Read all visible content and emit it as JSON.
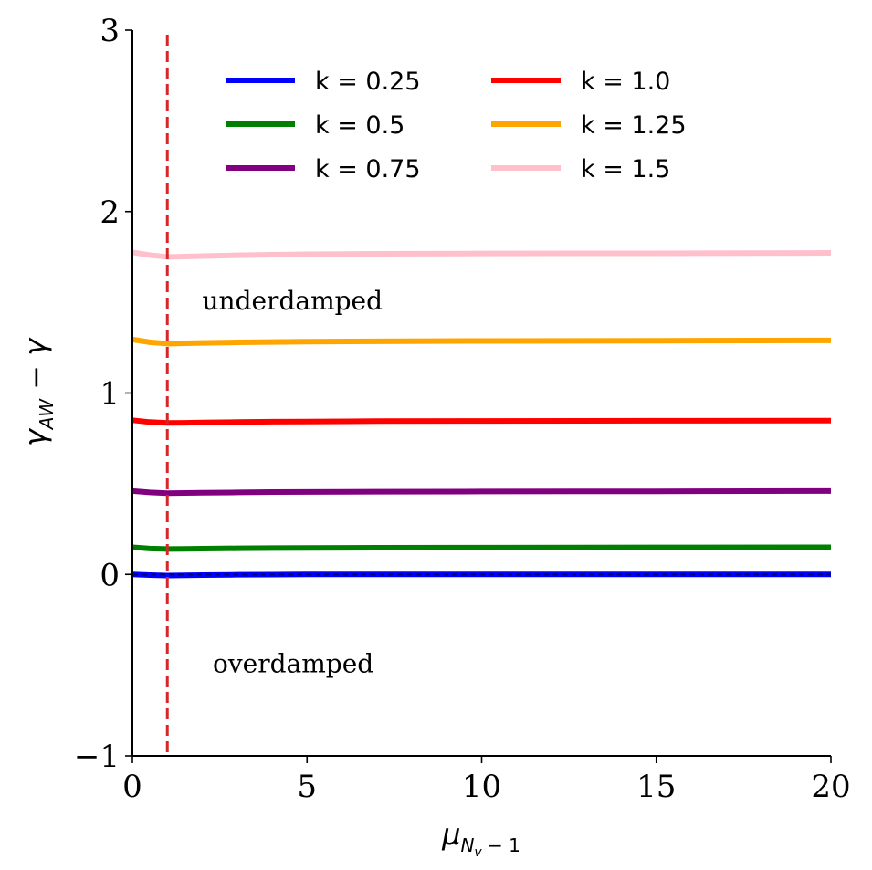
{
  "chart_data": {
    "type": "line",
    "xlabel": "μ_{N_v−1}",
    "ylabel": "γ_AW − γ",
    "xlim": [
      0,
      20
    ],
    "ylim": [
      -1,
      3
    ],
    "xticks": [
      0,
      5,
      10,
      15,
      20
    ],
    "xtick_labels": [
      "0",
      "5",
      "10",
      "15",
      "20"
    ],
    "yticks": [
      -1,
      0,
      1,
      2,
      3
    ],
    "ytick_labels": [
      "−1",
      "0",
      "1",
      "2",
      "3"
    ],
    "grid": false,
    "legend_position": "top-right",
    "legend_columns": 2,
    "vertical_line": {
      "x": 1.0,
      "color": "#d62728",
      "style": "dashed"
    },
    "horizontal_line": {
      "y": 0,
      "color": "#000080",
      "style": "dashed"
    },
    "annotations": [
      {
        "text": "underdamped",
        "x": 2.0,
        "y": 1.5
      },
      {
        "text": "overdamped",
        "x": 2.3,
        "y": -0.5
      }
    ],
    "x": [
      0,
      0.5,
      1,
      1.5,
      2,
      3,
      4,
      5,
      7,
      10,
      15,
      20
    ],
    "series": [
      {
        "name": "k = 0.25",
        "color": "#0000ff",
        "values": [
          0.0,
          -0.004,
          -0.006,
          -0.005,
          -0.004,
          -0.002,
          -0.001,
          0.0,
          0.0,
          0.0,
          0.0,
          0.0
        ]
      },
      {
        "name": "k = 0.5",
        "color": "#008000",
        "values": [
          0.15,
          0.143,
          0.14,
          0.141,
          0.142,
          0.144,
          0.145,
          0.146,
          0.147,
          0.148,
          0.149,
          0.15
        ]
      },
      {
        "name": "k = 0.75",
        "color": "#800080",
        "values": [
          0.46,
          0.452,
          0.448,
          0.449,
          0.45,
          0.452,
          0.454,
          0.455,
          0.456,
          0.457,
          0.458,
          0.46
        ]
      },
      {
        "name": "k = 1.0",
        "color": "#ff0000",
        "values": [
          0.85,
          0.84,
          0.835,
          0.836,
          0.838,
          0.84,
          0.842,
          0.843,
          0.845,
          0.846,
          0.847,
          0.848
        ]
      },
      {
        "name": "k = 1.25",
        "color": "#ffa500",
        "values": [
          1.295,
          1.28,
          1.272,
          1.274,
          1.276,
          1.279,
          1.281,
          1.283,
          1.285,
          1.287,
          1.288,
          1.29
        ]
      },
      {
        "name": "k = 1.5",
        "color": "#ffc0cb",
        "values": [
          1.775,
          1.76,
          1.75,
          1.752,
          1.755,
          1.759,
          1.762,
          1.765,
          1.767,
          1.769,
          1.77,
          1.772
        ]
      }
    ]
  }
}
